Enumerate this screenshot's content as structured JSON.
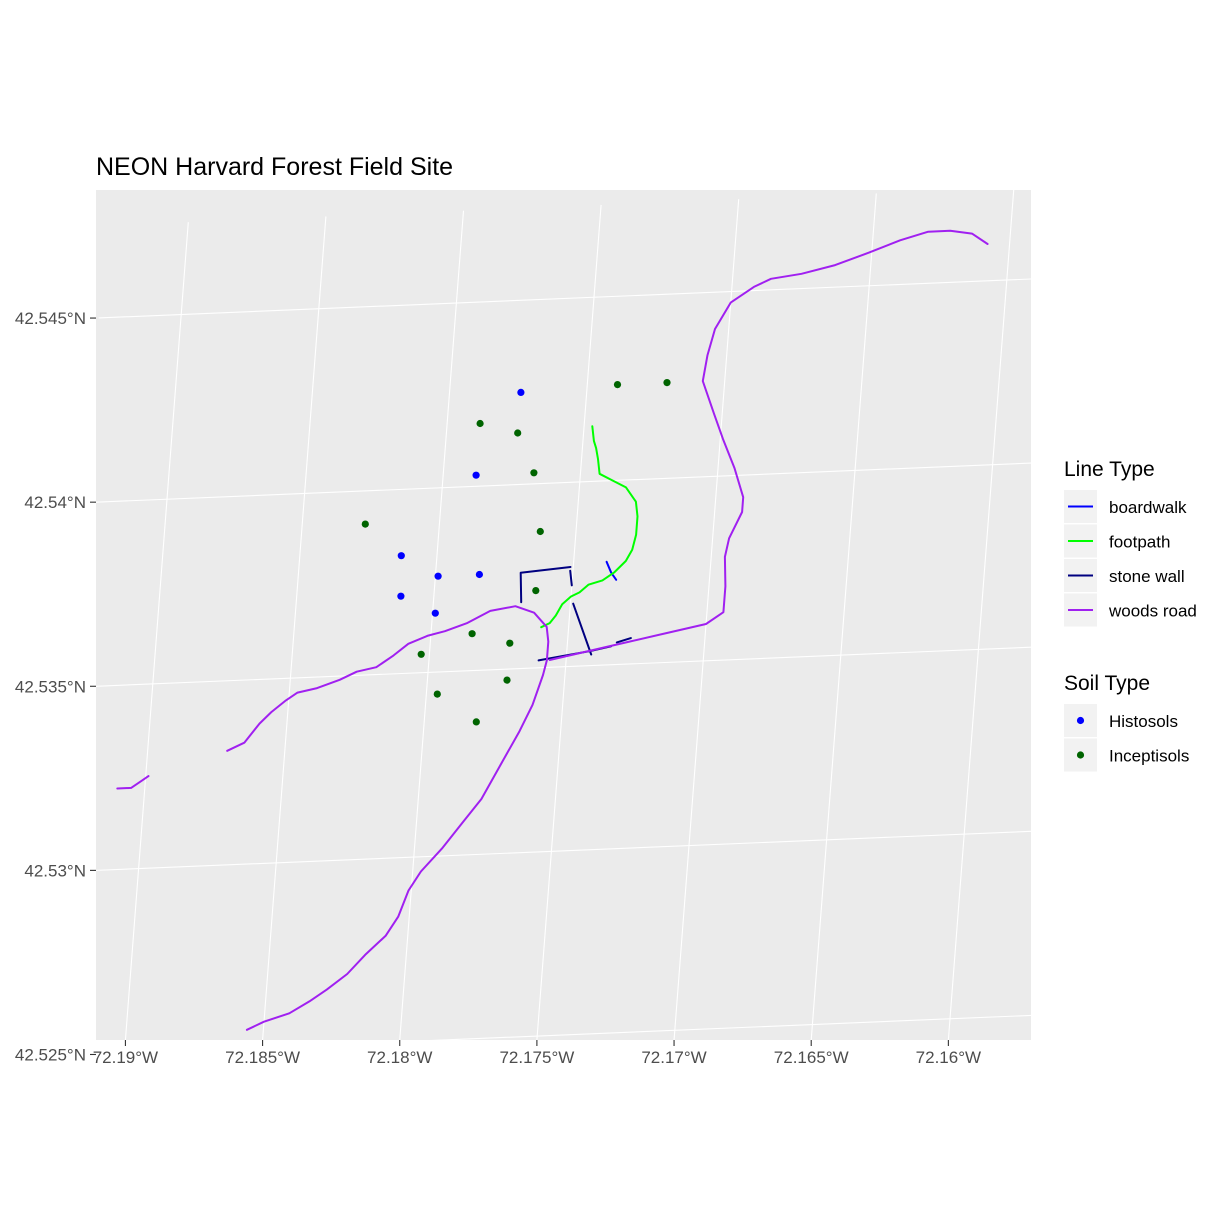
{
  "title": "NEON Harvard Forest Field Site",
  "x_ticks": [
    "72.19°W",
    "72.185°W",
    "72.18°W",
    "72.175°W",
    "72.17°W",
    "72.165°W",
    "72.16°W"
  ],
  "y_ticks": [
    "42.525°N",
    "42.53°N",
    "42.535°N",
    "42.54°N",
    "42.545°N"
  ],
  "legend_lines": {
    "title": "Line Type",
    "items": [
      {
        "key": "boardwalk",
        "label": "boardwalk",
        "color": "#0000ff"
      },
      {
        "key": "footpath",
        "label": "footpath",
        "color": "#00ff00"
      },
      {
        "key": "stonewall",
        "label": "stone wall",
        "color": "#000080"
      },
      {
        "key": "woodsroad",
        "label": "woods road",
        "color": "#a020f0"
      }
    ]
  },
  "legend_soils": {
    "title": "Soil Type",
    "items": [
      {
        "key": "histosols",
        "label": "Histosols",
        "color": "#0000ff"
      },
      {
        "key": "inceptisols",
        "label": "Inceptisols",
        "color": "#006400"
      }
    ]
  },
  "colors": {
    "panel": "#ebebeb",
    "grid": "#ffffff",
    "boardwalk": "#0000ff",
    "footpath": "#00ff00",
    "stonewall": "#000080",
    "woodsroad": "#a020f0",
    "histosols": "#0000ff",
    "inceptisols": "#006400"
  },
  "chart_data": {
    "type": "map",
    "xlabel": "",
    "ylabel": "",
    "xlim": [
      "72.19°W",
      "72.16°W"
    ],
    "ylim": [
      "42.525°N",
      "42.545°N"
    ],
    "grid": true,
    "legend_position": "right",
    "plots": [
      {
        "soil": "Histosols",
        "lon": -72.1774,
        "lat": 42.5425
      },
      {
        "soil": "Histosols",
        "lon": -72.1788,
        "lat": 42.5403
      },
      {
        "soil": "Histosols",
        "lon": -72.1813,
        "lat": 42.5382
      },
      {
        "soil": "Histosols",
        "lon": -72.1799,
        "lat": 42.5376
      },
      {
        "soil": "Histosols",
        "lon": -72.1784,
        "lat": 42.5376
      },
      {
        "soil": "Histosols",
        "lon": -72.1812,
        "lat": 42.5371
      },
      {
        "soil": "Histosols",
        "lon": -72.1799,
        "lat": 42.5366
      },
      {
        "soil": "Inceptisols",
        "lon": -72.1739,
        "lat": 42.5426
      },
      {
        "soil": "Inceptisols",
        "lon": -72.1721,
        "lat": 42.5426
      },
      {
        "soil": "Inceptisols",
        "lon": -72.1788,
        "lat": 42.5417
      },
      {
        "soil": "Inceptisols",
        "lon": -72.1774,
        "lat": 42.5414
      },
      {
        "soil": "Inceptisols",
        "lon": -72.1767,
        "lat": 42.5403
      },
      {
        "soil": "Inceptisols",
        "lon": -72.1827,
        "lat": 42.5391
      },
      {
        "soil": "Inceptisols",
        "lon": -72.1763,
        "lat": 42.5387
      },
      {
        "soil": "Inceptisols",
        "lon": -72.1763,
        "lat": 42.5371
      },
      {
        "soil": "Inceptisols",
        "lon": -72.1785,
        "lat": 42.536
      },
      {
        "soil": "Inceptisols",
        "lon": -72.1771,
        "lat": 42.5357
      },
      {
        "soil": "Inceptisols",
        "lon": -72.1803,
        "lat": 42.5355
      },
      {
        "soil": "Inceptisols",
        "lon": -72.1771,
        "lat": 42.5347
      },
      {
        "soil": "Inceptisols",
        "lon": -72.1796,
        "lat": 42.5344
      },
      {
        "soil": "Inceptisols",
        "lon": -72.1781,
        "lat": 42.5336
      }
    ],
    "lines": [
      {
        "type": "boardwalk",
        "paths": [
          [
            [
              -72.1738,
              42.5378
            ],
            [
              -72.1736,
              42.5375
            ],
            [
              -72.1734,
              42.5373
            ]
          ]
        ]
      },
      {
        "type": "footpath",
        "paths": [
          [
            [
              -72.1747,
              42.5415
            ],
            [
              -72.1746,
              42.5411
            ],
            [
              -72.1745,
              42.5409
            ],
            [
              -72.1744,
              42.5406
            ],
            [
              -72.1743,
              42.5402
            ],
            [
              -72.1738,
              42.54
            ],
            [
              -72.1733,
              42.5398
            ],
            [
              -72.1729,
              42.5394
            ],
            [
              -72.1728,
              42.539
            ],
            [
              -72.1728,
              42.5385
            ],
            [
              -72.1729,
              42.5381
            ],
            [
              -72.1731,
              42.5378
            ],
            [
              -72.1735,
              42.5375
            ],
            [
              -72.1739,
              42.5373
            ],
            [
              -72.1744,
              42.5372
            ],
            [
              -72.1747,
              42.537
            ],
            [
              -72.175,
              42.5369
            ],
            [
              -72.1753,
              42.5367
            ],
            [
              -72.1755,
              42.5364
            ],
            [
              -72.1757,
              42.5362
            ],
            [
              -72.176,
              42.5361
            ]
          ]
        ]
      },
      {
        "type": "stonewall",
        "paths": [
          [
            [
              -72.1768,
              42.5368
            ],
            [
              -72.1769,
              42.5376
            ],
            [
              -72.1751,
              42.5377
            ]
          ],
          [
            [
              -72.1751,
              42.5376
            ],
            [
              -72.175,
              42.5372
            ]
          ],
          [
            [
              -72.1749,
              42.5367
            ],
            [
              -72.1741,
              42.5353
            ]
          ],
          [
            [
              -72.176,
              42.5352
            ],
            [
              -72.1741,
              42.5354
            ],
            [
              -72.1734,
              42.5355
            ]
          ],
          [
            [
              -72.1732,
              42.5356
            ],
            [
              -72.1727,
              42.5357
            ]
          ]
        ]
      },
      {
        "type": "woodsroad",
        "paths": [
          [
            [
              -72.1871,
              42.5331
            ],
            [
              -72.1865,
              42.5333
            ],
            [
              -72.186,
              42.5338
            ],
            [
              -72.1856,
              42.5341
            ],
            [
              -72.1851,
              42.5344
            ],
            [
              -72.1847,
              42.5346
            ],
            [
              -72.184,
              42.5347
            ],
            [
              -72.1832,
              42.5349
            ],
            [
              -72.1826,
              42.5351
            ],
            [
              -72.1819,
              42.5352
            ],
            [
              -72.1813,
              42.5355
            ],
            [
              -72.1808,
              42.5358
            ],
            [
              -72.1801,
              42.536
            ],
            [
              -72.1795,
              42.5361
            ],
            [
              -72.1787,
              42.5363
            ],
            [
              -72.1779,
              42.5366
            ],
            [
              -72.177,
              42.5367
            ],
            [
              -72.1763,
              42.5365
            ],
            [
              -72.1758,
              42.5361
            ],
            [
              -72.1757,
              42.5357
            ],
            [
              -72.1757,
              42.5352
            ],
            [
              -72.1758,
              42.5348
            ],
            [
              -72.1761,
              42.534
            ],
            [
              -72.1765,
              42.5333
            ],
            [
              -72.1771,
              42.5324
            ],
            [
              -72.1777,
              42.5315
            ],
            [
              -72.1783,
              42.5309
            ],
            [
              -72.179,
              42.5302
            ],
            [
              -72.1797,
              42.5296
            ],
            [
              -72.1801,
              42.5291
            ],
            [
              -72.1804,
              42.5284
            ],
            [
              -72.1808,
              42.5279
            ],
            [
              -72.1815,
              42.5274
            ],
            [
              -72.1821,
              42.5269
            ],
            [
              -72.1828,
              42.5265
            ],
            [
              -72.1834,
              42.5262
            ],
            [
              -72.1841,
              42.5259
            ],
            [
              -72.185,
              42.5257
            ],
            [
              -72.1856,
              42.5255
            ]
          ],
          [
            [
              -72.1756,
              42.5352
            ],
            [
              -72.1742,
              42.5354
            ],
            [
              -72.1728,
              42.5356
            ],
            [
              -72.1714,
              42.5358
            ],
            [
              -72.17,
              42.536
            ],
            [
              -72.1694,
              42.5363
            ],
            [
              -72.1694,
              42.537
            ],
            [
              -72.1695,
              42.5378
            ],
            [
              -72.1694,
              42.5383
            ],
            [
              -72.169,
              42.539
            ],
            [
              -72.169,
              42.5394
            ],
            [
              -72.1694,
              42.5402
            ],
            [
              -72.1699,
              42.541
            ],
            [
              -72.1703,
              42.5417
            ],
            [
              -72.1708,
              42.5426
            ],
            [
              -72.1707,
              42.5433
            ],
            [
              -72.1705,
              42.544
            ],
            [
              -72.17,
              42.5447
            ],
            [
              -72.1692,
              42.5451
            ],
            [
              -72.1686,
              42.5453
            ],
            [
              -72.1675,
              42.5454
            ],
            [
              -72.1663,
              42.5456
            ],
            [
              -72.1651,
              42.5459
            ],
            [
              -72.164,
              42.5462
            ],
            [
              -72.163,
              42.5464
            ],
            [
              -72.1622,
              42.5464
            ],
            [
              -72.1614,
              42.5463
            ],
            [
              -72.1608,
              42.546
            ]
          ],
          [
            [
              -72.191,
              42.5322
            ],
            [
              -72.1905,
              42.5322
            ],
            [
              -72.1901,
              42.5324
            ],
            [
              -72.1899,
              42.5325
            ]
          ]
        ]
      }
    ]
  }
}
